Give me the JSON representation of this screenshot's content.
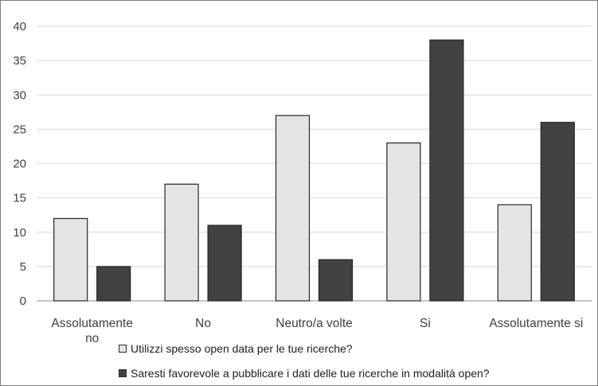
{
  "chart_data": {
    "type": "bar",
    "title": "",
    "xlabel": "",
    "ylabel": "",
    "ylim": [
      0,
      40
    ],
    "yticks": [
      0,
      5,
      10,
      15,
      20,
      25,
      30,
      35,
      40
    ],
    "grid": true,
    "legend_position": "bottom-left",
    "categories": [
      [
        "Assolutamente",
        "no"
      ],
      [
        "No"
      ],
      [
        "Neutro/a volte"
      ],
      [
        "Si"
      ],
      [
        "Assolutamente si"
      ]
    ],
    "series": [
      {
        "name": "Utilizzi spesso open data per le tue ricerche?",
        "color": "#e4e4e4",
        "values": [
          12,
          17,
          27,
          23,
          14
        ]
      },
      {
        "name": "Saresti favorevole a pubblicare i dati delle tue ricerche in modalità open?",
        "color": "#424242",
        "values": [
          5,
          11,
          6,
          38,
          26
        ]
      }
    ]
  }
}
